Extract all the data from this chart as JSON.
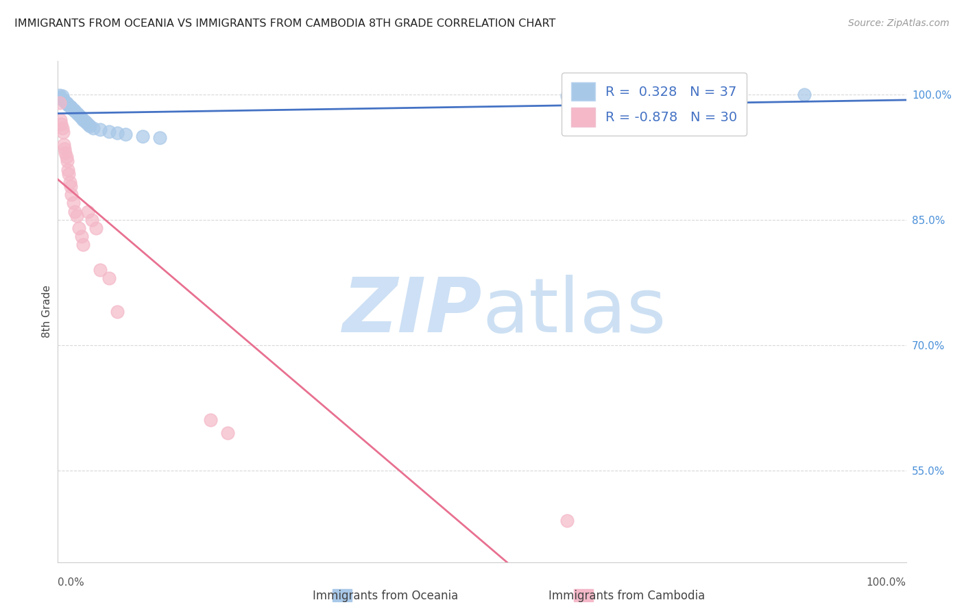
{
  "title": "IMMIGRANTS FROM OCEANIA VS IMMIGRANTS FROM CAMBODIA 8TH GRADE CORRELATION CHART",
  "source": "Source: ZipAtlas.com",
  "ylabel": "8th Grade",
  "ytick_labels": [
    "100.0%",
    "85.0%",
    "70.0%",
    "55.0%"
  ],
  "ytick_values": [
    1.0,
    0.85,
    0.7,
    0.55
  ],
  "xlim": [
    0.0,
    1.0
  ],
  "ylim": [
    0.44,
    1.04
  ],
  "oceania_color": "#a8c8e8",
  "oceania_edge_color": "#a8c8e8",
  "oceania_line_color": "#4472c4",
  "cambodia_color": "#f4b8c8",
  "cambodia_edge_color": "#f4b8c8",
  "cambodia_line_color": "#e87090",
  "r_oceania": "0.328",
  "n_oceania": "37",
  "r_cambodia": "-0.878",
  "n_cambodia": "30",
  "oceania_x": [
    0.002,
    0.003,
    0.004,
    0.005,
    0.006,
    0.007,
    0.008,
    0.009,
    0.01,
    0.011,
    0.012,
    0.013,
    0.014,
    0.015,
    0.016,
    0.017,
    0.018,
    0.019,
    0.02,
    0.022,
    0.024,
    0.026,
    0.028,
    0.03,
    0.032,
    0.034,
    0.036,
    0.038,
    0.042,
    0.05,
    0.06,
    0.07,
    0.08,
    0.1,
    0.12,
    0.6,
    0.88
  ],
  "oceania_y": [
    0.999,
    0.997,
    0.995,
    0.998,
    0.994,
    0.993,
    0.992,
    0.991,
    0.99,
    0.989,
    0.988,
    0.987,
    0.986,
    0.985,
    0.984,
    0.983,
    0.982,
    0.981,
    0.98,
    0.978,
    0.976,
    0.974,
    0.972,
    0.97,
    0.968,
    0.966,
    0.964,
    0.962,
    0.96,
    0.958,
    0.956,
    0.954,
    0.952,
    0.95,
    0.948,
    0.998,
    1.0
  ],
  "cambodia_x": [
    0.002,
    0.003,
    0.004,
    0.005,
    0.006,
    0.007,
    0.008,
    0.009,
    0.01,
    0.011,
    0.012,
    0.013,
    0.014,
    0.015,
    0.016,
    0.018,
    0.02,
    0.022,
    0.025,
    0.028,
    0.03,
    0.035,
    0.04,
    0.045,
    0.05,
    0.06,
    0.07,
    0.18,
    0.2,
    0.6
  ],
  "cambodia_y": [
    0.99,
    0.97,
    0.965,
    0.96,
    0.955,
    0.94,
    0.935,
    0.93,
    0.925,
    0.92,
    0.91,
    0.905,
    0.895,
    0.89,
    0.88,
    0.87,
    0.86,
    0.855,
    0.84,
    0.83,
    0.82,
    0.86,
    0.85,
    0.84,
    0.79,
    0.78,
    0.74,
    0.61,
    0.595,
    0.49
  ],
  "watermark_zip": "ZIP",
  "watermark_atlas": "atlas",
  "watermark_color": "#cde0f5",
  "background_color": "#ffffff",
  "grid_color": "#d8d8d8",
  "legend_text_color": "#4472c4",
  "title_color": "#222222",
  "source_color": "#999999",
  "ylabel_color": "#444444",
  "right_tick_color": "#4a90d9",
  "bottom_label_color": "#555555"
}
